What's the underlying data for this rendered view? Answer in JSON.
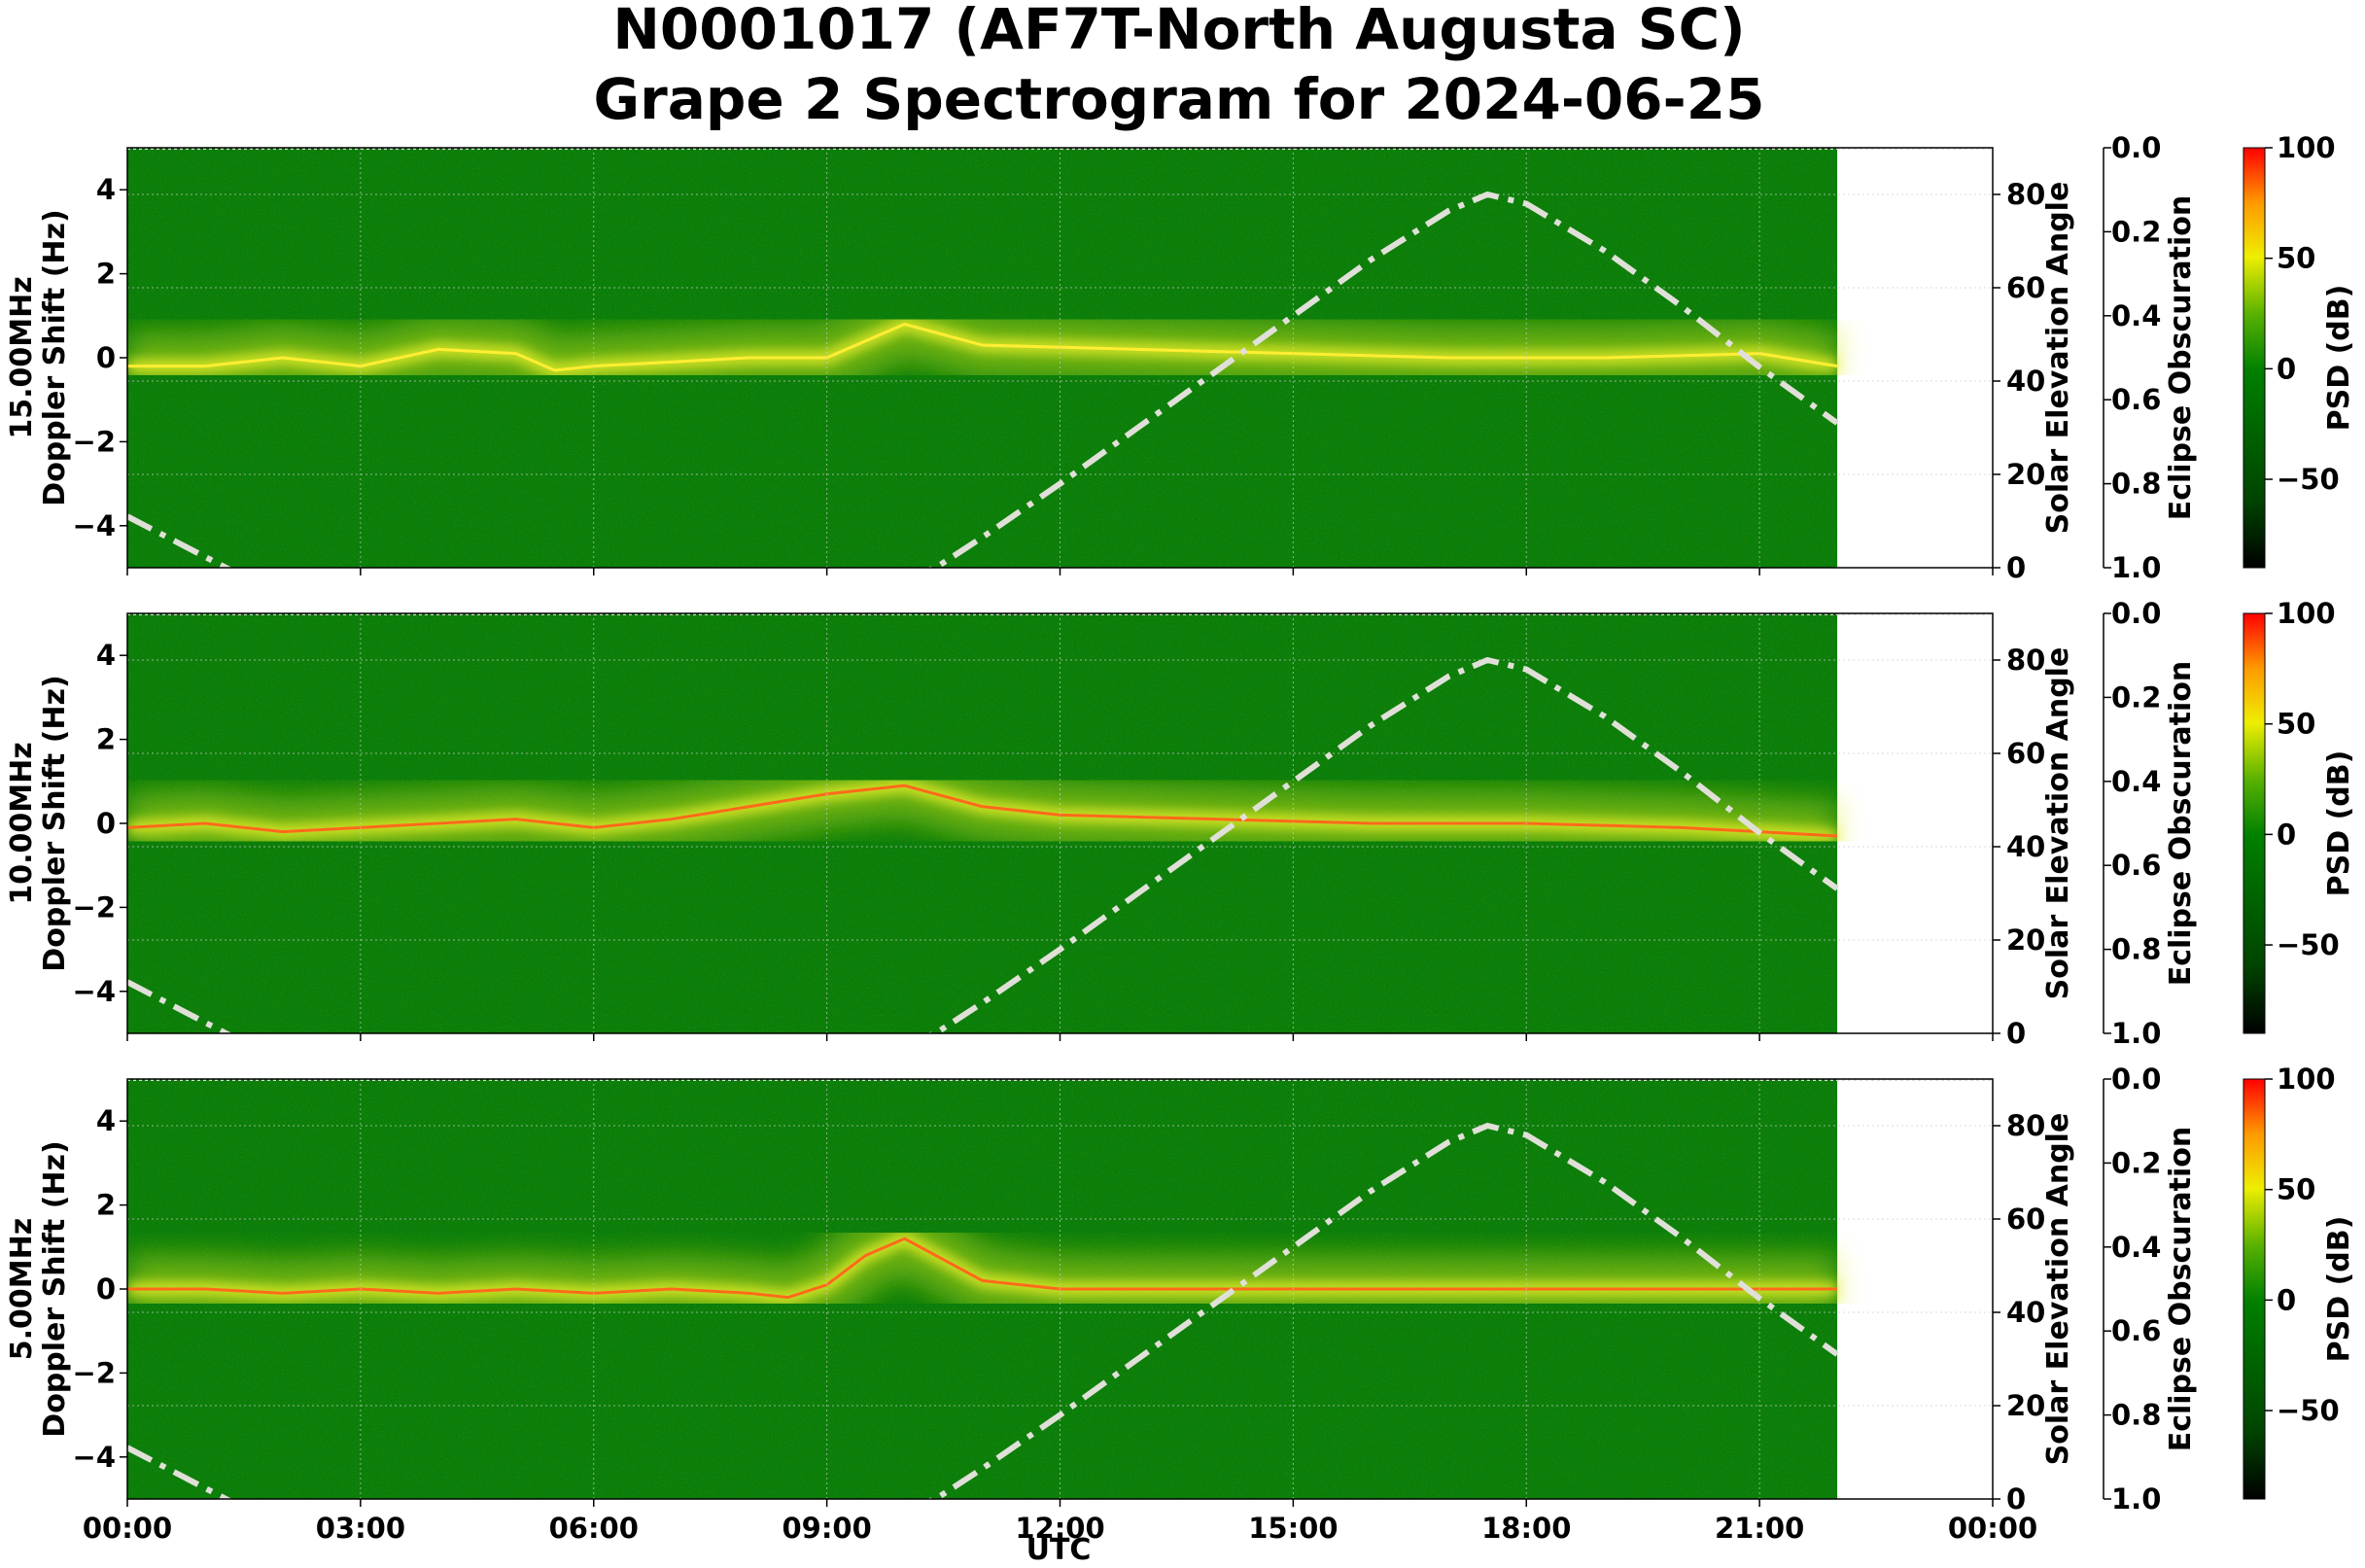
{
  "chart_data": {
    "type": "heatmap",
    "title_line1": "N0001017 (AF7T-North Augusta SC)",
    "title_line2": "Grape 2 Spectrogram for 2024-06-25",
    "xlabel": "UTC",
    "x_ticks": [
      "00:00",
      "03:00",
      "06:00",
      "09:00",
      "12:00",
      "15:00",
      "18:00",
      "21:00",
      "00:00"
    ],
    "xlim_hours": [
      0,
      24
    ],
    "data_end_hours": 22,
    "ylabel": "Doppler Shift (Hz)",
    "ylim": [
      -5,
      5
    ],
    "y_ticks": [
      4,
      2,
      0,
      -2,
      -4
    ],
    "right_ylabel": "Solar Elevation Angle",
    "right_ylim": [
      0,
      90
    ],
    "right_y_ticks": [
      80,
      60,
      40,
      20,
      0
    ],
    "eclipse_label": "Eclipse Obscuration",
    "eclipse_ticks": [
      "0.0",
      "0.2",
      "0.4",
      "0.6",
      "0.8",
      "1.0"
    ],
    "colorbar_label": "PSD (dB)",
    "colorbar_ticks": [
      100,
      50,
      0,
      -50
    ],
    "colorbar_range": [
      -90,
      100
    ],
    "grid": true,
    "solar_elevation": {
      "style": "dash-dot",
      "hours": [
        0,
        1.5,
        3,
        4.5,
        6,
        7.5,
        9,
        10.4,
        11,
        12,
        13,
        14,
        15,
        16,
        17,
        17.5,
        18,
        19,
        20,
        21,
        22
      ],
      "degrees": [
        11,
        -2,
        -15,
        -25,
        -27,
        -20,
        -8,
        0,
        6.5,
        18,
        30,
        42,
        54,
        66,
        76.5,
        80,
        78,
        68,
        56,
        43,
        31
      ]
    },
    "panels": [
      {
        "label": "15.00MHz",
        "carrier_hz": [
          [
            0,
            -0.2
          ],
          [
            1,
            -0.2
          ],
          [
            2,
            0.0
          ],
          [
            3,
            -0.2
          ],
          [
            4,
            0.2
          ],
          [
            5,
            0.1
          ],
          [
            5.5,
            -0.3
          ],
          [
            6,
            -0.2
          ],
          [
            7,
            -0.1
          ],
          [
            8,
            0.0
          ],
          [
            9,
            0.0
          ],
          [
            10,
            0.8
          ],
          [
            11,
            0.3
          ],
          [
            13,
            0.2
          ],
          [
            15,
            0.1
          ],
          [
            17,
            0.0
          ],
          [
            19,
            0.0
          ],
          [
            21,
            0.1
          ],
          [
            22,
            -0.2
          ]
        ]
      },
      {
        "label": "10.00MHz",
        "carrier_hz": [
          [
            0,
            -0.1
          ],
          [
            1,
            0.0
          ],
          [
            2,
            -0.2
          ],
          [
            3,
            -0.1
          ],
          [
            4,
            0.0
          ],
          [
            5,
            0.1
          ],
          [
            6,
            -0.1
          ],
          [
            7,
            0.1
          ],
          [
            8,
            0.4
          ],
          [
            9,
            0.7
          ],
          [
            10,
            0.9
          ],
          [
            11,
            0.4
          ],
          [
            12,
            0.2
          ],
          [
            14,
            0.1
          ],
          [
            16,
            0.0
          ],
          [
            18,
            0.0
          ],
          [
            20,
            -0.1
          ],
          [
            22,
            -0.3
          ]
        ]
      },
      {
        "label": "5.00MHz",
        "carrier_hz": [
          [
            0,
            0.0
          ],
          [
            1,
            0.0
          ],
          [
            2,
            -0.1
          ],
          [
            3,
            0.0
          ],
          [
            4,
            -0.1
          ],
          [
            5,
            0.0
          ],
          [
            6,
            -0.1
          ],
          [
            7,
            0.0
          ],
          [
            8,
            -0.1
          ],
          [
            8.5,
            -0.2
          ],
          [
            9,
            0.1
          ],
          [
            9.5,
            0.8
          ],
          [
            10,
            1.2
          ],
          [
            11,
            0.2
          ],
          [
            12,
            0.0
          ],
          [
            22,
            0.0
          ]
        ]
      }
    ]
  }
}
